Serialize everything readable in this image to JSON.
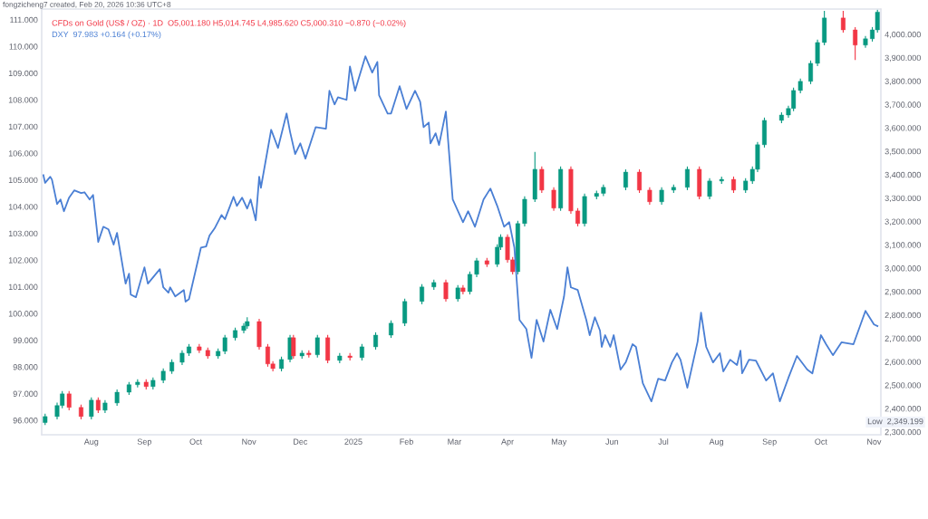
{
  "chart_data": {
    "type": "candlestick",
    "annotations": [
      "fongzicheng7 created, Feb 20, 2026 10:36 UTC+8",
      "CFDs on Gold (US$ / OZ) · 1D  O5,001.180 H5,014.745 L4,985.620 C5,000.310 −0.870 (−0.02%)",
      "DXY  97.983 +0.164 (+0.17%)",
      "Low  2,349.199"
    ],
    "xlim": [
      "2024-07-03",
      "2025-11-05"
    ],
    "xticks": [
      {
        "value": "2024-08-01",
        "label": "Aug"
      },
      {
        "value": "2024-09-01",
        "label": "Sep"
      },
      {
        "value": "2024-10-01",
        "label": "Oct"
      },
      {
        "value": "2024-11-01",
        "label": "Nov"
      },
      {
        "value": "2024-12-01",
        "label": "Dec"
      },
      {
        "value": "2025-01-01",
        "label": "2025"
      },
      {
        "value": "2025-02-01",
        "label": "Feb"
      },
      {
        "value": "2025-03-01",
        "label": "Mar"
      },
      {
        "value": "2025-04-01",
        "label": "Apr"
      },
      {
        "value": "2025-05-01",
        "label": "May"
      },
      {
        "value": "2025-06-01",
        "label": "Jun"
      },
      {
        "value": "2025-07-01",
        "label": "Jul"
      },
      {
        "value": "2025-08-01",
        "label": "Aug"
      },
      {
        "value": "2025-09-01",
        "label": "Sep"
      },
      {
        "value": "2025-10-01",
        "label": "Oct"
      },
      {
        "value": "2025-11-01",
        "label": "Nov"
      }
    ],
    "ylim": [
      95.46,
      111.4
    ],
    "yticks": [
      {
        "value": 96,
        "label": "96.000"
      },
      {
        "value": 97,
        "label": "97.000"
      },
      {
        "value": 98,
        "label": "98.000"
      },
      {
        "value": 99,
        "label": "99.000"
      },
      {
        "value": 100,
        "label": "100.000"
      },
      {
        "value": 101,
        "label": "101.000"
      },
      {
        "value": 102,
        "label": "102.000"
      },
      {
        "value": 103,
        "label": "103.000"
      },
      {
        "value": 104,
        "label": "104.000"
      },
      {
        "value": 105,
        "label": "105.000"
      },
      {
        "value": 106,
        "label": "106.000"
      },
      {
        "value": 107,
        "label": "107.000"
      },
      {
        "value": 108,
        "label": "108.000"
      },
      {
        "value": 109,
        "label": "109.000"
      },
      {
        "value": 110,
        "label": "110.000"
      },
      {
        "value": 111,
        "label": "111.000"
      }
    ],
    "y2lim": [
      2288,
      4108
    ],
    "y2ticks": [
      {
        "value": 2300,
        "label": "2,300.000"
      },
      {
        "value": 2400,
        "label": "2,400.000"
      },
      {
        "value": 2500,
        "label": "2,500.000"
      },
      {
        "value": 2600,
        "label": "2,600.000"
      },
      {
        "value": 2700,
        "label": "2,700.000"
      },
      {
        "value": 2800,
        "label": "2,800.000"
      },
      {
        "value": 2900,
        "label": "2,900.000"
      },
      {
        "value": 3000,
        "label": "3,000.000"
      },
      {
        "value": 3100,
        "label": "3,100.000"
      },
      {
        "value": 3200,
        "label": "3,200.000"
      },
      {
        "value": 3300,
        "label": "3,300.000"
      },
      {
        "value": 3400,
        "label": "3,400.000"
      },
      {
        "value": 3500,
        "label": "3,500.000"
      },
      {
        "value": 3600,
        "label": "3,600.000"
      },
      {
        "value": 3700,
        "label": "3,700.000"
      },
      {
        "value": 3800,
        "label": "3,800.000"
      },
      {
        "value": 3900,
        "label": "3,900.000"
      },
      {
        "value": 4000,
        "label": "4,000.000"
      }
    ],
    "grid": false,
    "legend": false,
    "series": [
      {
        "type": "line",
        "color": "#4a7fd4",
        "x": [
          "2024-07-04",
          "2024-07-05",
          "2024-07-08",
          "2024-07-09",
          "2024-07-12",
          "2024-07-14",
          "2024-07-16",
          "2024-07-19",
          "2024-07-22",
          "2024-07-26",
          "2024-07-28",
          "2024-07-31",
          "2024-08-02",
          "2024-08-05",
          "2024-08-08",
          "2024-08-11",
          "2024-08-14",
          "2024-08-16",
          "2024-08-21",
          "2024-08-23",
          "2024-08-24",
          "2024-08-27",
          "2024-09-01",
          "2024-09-03",
          "2024-09-10",
          "2024-09-12",
          "2024-09-15",
          "2024-09-16",
          "2024-09-19",
          "2024-09-24",
          "2024-09-25",
          "2024-09-27",
          "2024-10-04",
          "2024-10-07",
          "2024-10-09",
          "2024-10-12",
          "2024-10-16",
          "2024-10-18",
          "2024-10-21",
          "2024-10-23",
          "2024-10-25",
          "2024-10-28",
          "2024-10-31",
          "2024-11-02",
          "2024-11-05",
          "2024-11-07",
          "2024-11-08",
          "2024-11-14",
          "2024-11-18",
          "2024-11-23",
          "2024-11-25",
          "2024-11-28",
          "2024-12-01",
          "2024-12-04",
          "2024-12-10",
          "2024-12-16",
          "2024-12-18",
          "2024-12-21",
          "2024-12-23",
          "2024-12-28",
          "2024-12-30",
          "2025-01-02",
          "2025-01-04",
          "2025-01-08",
          "2025-01-12",
          "2025-01-15",
          "2025-01-16",
          "2025-01-21",
          "2025-01-23",
          "2025-01-28",
          "2025-02-01",
          "2025-02-06",
          "2025-02-09",
          "2025-02-11",
          "2025-02-14",
          "2025-02-15",
          "2025-02-18",
          "2025-02-20",
          "2025-02-24",
          "2025-02-28",
          "2025-03-06",
          "2025-03-09",
          "2025-03-13",
          "2025-03-18",
          "2025-03-22",
          "2025-03-26",
          "2025-03-30",
          "2025-04-02",
          "2025-04-05",
          "2025-04-08",
          "2025-04-12",
          "2025-04-15",
          "2025-04-18",
          "2025-04-22",
          "2025-04-26",
          "2025-04-30",
          "2025-05-04",
          "2025-05-06",
          "2025-05-08",
          "2025-05-12",
          "2025-05-17",
          "2025-05-19",
          "2025-05-22",
          "2025-05-25",
          "2025-05-26",
          "2025-05-28",
          "2025-05-31",
          "2025-06-02",
          "2025-06-06",
          "2025-06-09",
          "2025-06-13",
          "2025-06-15",
          "2025-06-19",
          "2025-06-24",
          "2025-06-28",
          "2025-07-02",
          "2025-07-06",
          "2025-07-09",
          "2025-07-11",
          "2025-07-15",
          "2025-07-21",
          "2025-07-23",
          "2025-07-26",
          "2025-07-30",
          "2025-08-03",
          "2025-08-05",
          "2025-08-09",
          "2025-08-13",
          "2025-08-15",
          "2025-08-16",
          "2025-08-20",
          "2025-08-24",
          "2025-08-30",
          "2025-09-03",
          "2025-09-07",
          "2025-09-12",
          "2025-09-17",
          "2025-09-23",
          "2025-09-26",
          "2025-10-01",
          "2025-10-04",
          "2025-10-08",
          "2025-10-13",
          "2025-10-20",
          "2025-10-27",
          "2025-11-01",
          "2025-11-03"
        ],
        "values": [
          105.18,
          104.89,
          105.12,
          105.01,
          104.1,
          104.27,
          103.83,
          104.34,
          104.61,
          104.51,
          104.54,
          104.27,
          104.44,
          102.68,
          103.25,
          103.15,
          102.58,
          103.02,
          101.12,
          101.49,
          100.71,
          100.61,
          101.73,
          101.12,
          101.66,
          100.98,
          100.78,
          100.98,
          100.64,
          100.88,
          100.44,
          100.54,
          102.47,
          102.51,
          102.92,
          103.19,
          103.69,
          103.53,
          104.03,
          104.37,
          104.03,
          104.34,
          103.93,
          104.27,
          103.49,
          105.12,
          104.71,
          106.88,
          106.2,
          107.49,
          106.81,
          105.97,
          106.37,
          105.8,
          106.98,
          106.92,
          108.34,
          107.83,
          108.1,
          108.0,
          109.25,
          108.34,
          108.78,
          109.63,
          109.02,
          109.42,
          108.17,
          107.49,
          107.49,
          108.51,
          107.66,
          108.34,
          107.93,
          106.98,
          107.15,
          106.37,
          106.75,
          106.31,
          107.56,
          104.27,
          103.42,
          103.83,
          103.25,
          104.27,
          104.68,
          104.03,
          103.25,
          103.42,
          102.47,
          99.76,
          99.42,
          98.34,
          99.76,
          98.95,
          100.14,
          99.42,
          100.64,
          101.73,
          100.98,
          100.88,
          99.76,
          99.19,
          99.86,
          99.36,
          98.75,
          99.19,
          98.75,
          99.19,
          97.9,
          98.17,
          98.85,
          98.75,
          97.39,
          96.71,
          97.56,
          97.49,
          98.17,
          98.51,
          98.27,
          97.22,
          98.95,
          100.03,
          98.75,
          98.17,
          98.51,
          97.83,
          98.27,
          98.07,
          98.61,
          97.76,
          98.27,
          98.24,
          97.49,
          97.76,
          96.71,
          97.59,
          98.41,
          97.9,
          97.76,
          99.19,
          98.85,
          98.44,
          98.92,
          98.85,
          100.1,
          99.59,
          99.53
        ]
      },
      {
        "type": "candlestick",
        "axis": "y2",
        "x": [
          "2024-07-05",
          "2024-07-12",
          "2024-07-15",
          "2024-07-19",
          "2024-07-26",
          "2024-08-01",
          "2024-08-05",
          "2024-08-09",
          "2024-08-16",
          "2024-08-23",
          "2024-08-28",
          "2024-09-02",
          "2024-09-06",
          "2024-09-12",
          "2024-09-17",
          "2024-09-23",
          "2024-09-27",
          "2024-10-03",
          "2024-10-08",
          "2024-10-14",
          "2024-10-18",
          "2024-10-24",
          "2024-10-29",
          "2024-10-31",
          "2024-11-07",
          "2024-11-12",
          "2024-11-15",
          "2024-11-20",
          "2024-11-25",
          "2024-11-27",
          "2024-12-02",
          "2024-12-06",
          "2024-12-11",
          "2024-12-17",
          "2024-12-24",
          "2024-12-30",
          "2025-01-06",
          "2025-01-14",
          "2025-01-23",
          "2025-01-31",
          "2025-02-10",
          "2025-02-17",
          "2025-02-24",
          "2025-03-03",
          "2025-03-06",
          "2025-03-10",
          "2025-03-14",
          "2025-03-20",
          "2025-03-26",
          "2025-03-28",
          "2025-04-01",
          "2025-04-04",
          "2025-04-07",
          "2025-04-11",
          "2025-04-17",
          "2025-04-21",
          "2025-04-28",
          "2025-05-02",
          "2025-05-08",
          "2025-05-12",
          "2025-05-16",
          "2025-05-23",
          "2025-05-27",
          "2025-06-09",
          "2025-06-17",
          "2025-06-23",
          "2025-06-30",
          "2025-07-07",
          "2025-07-15",
          "2025-07-22",
          "2025-07-28",
          "2025-08-04",
          "2025-08-11",
          "2025-08-18",
          "2025-08-22",
          "2025-08-25",
          "2025-08-29",
          "2025-09-08",
          "2025-09-12",
          "2025-09-15",
          "2025-09-19",
          "2025-09-25",
          "2025-09-29",
          "2025-10-03",
          "2025-10-14",
          "2025-10-21",
          "2025-10-27",
          "2025-10-31",
          "2025-11-03"
        ],
        "ohlc": [
          [
            2340,
            2378,
            2330,
            2366
          ],
          [
            2366,
            2425,
            2354,
            2413
          ],
          [
            2413,
            2475,
            2401,
            2463
          ],
          [
            2463,
            2475,
            2393,
            2405
          ],
          [
            2405,
            2417,
            2354,
            2366
          ],
          [
            2366,
            2448,
            2354,
            2436
          ],
          [
            2436,
            2448,
            2381,
            2393
          ],
          [
            2393,
            2436,
            2381,
            2424
          ],
          [
            2424,
            2482,
            2412,
            2470
          ],
          [
            2470,
            2514,
            2458,
            2502
          ],
          [
            2502,
            2525,
            2490,
            2513
          ],
          [
            2513,
            2525,
            2482,
            2494
          ],
          [
            2494,
            2533,
            2482,
            2521
          ],
          [
            2521,
            2572,
            2509,
            2560
          ],
          [
            2560,
            2610,
            2548,
            2598
          ],
          [
            2598,
            2649,
            2586,
            2637
          ],
          [
            2637,
            2676,
            2625,
            2664
          ],
          [
            2664,
            2676,
            2637,
            2649
          ],
          [
            2649,
            2661,
            2613,
            2625
          ],
          [
            2625,
            2657,
            2613,
            2645
          ],
          [
            2645,
            2715,
            2633,
            2703
          ],
          [
            2703,
            2746,
            2691,
            2734
          ],
          [
            2734,
            2765,
            2722,
            2753
          ],
          [
            2753,
            2790,
            2741,
            2772
          ],
          [
            2772,
            2784,
            2652,
            2664
          ],
          [
            2664,
            2676,
            2579,
            2591
          ],
          [
            2591,
            2603,
            2559,
            2571
          ],
          [
            2571,
            2622,
            2559,
            2610
          ],
          [
            2610,
            2715,
            2598,
            2703
          ],
          [
            2703,
            2715,
            2613,
            2625
          ],
          [
            2625,
            2649,
            2613,
            2637
          ],
          [
            2637,
            2649,
            2618,
            2630
          ],
          [
            2630,
            2715,
            2618,
            2703
          ],
          [
            2703,
            2715,
            2594,
            2606
          ],
          [
            2606,
            2637,
            2594,
            2625
          ],
          [
            2625,
            2637,
            2606,
            2618
          ],
          [
            2618,
            2676,
            2606,
            2664
          ],
          [
            2664,
            2726,
            2652,
            2714
          ],
          [
            2714,
            2777,
            2702,
            2765
          ],
          [
            2765,
            2870,
            2753,
            2858
          ],
          [
            2858,
            2932,
            2846,
            2920
          ],
          [
            2920,
            2951,
            2908,
            2939
          ],
          [
            2939,
            2951,
            2857,
            2869
          ],
          [
            2869,
            2928,
            2857,
            2916
          ],
          [
            2916,
            2928,
            2888,
            2900
          ],
          [
            2900,
            2986,
            2888,
            2974
          ],
          [
            2974,
            3044,
            2962,
            3032
          ],
          [
            3032,
            3044,
            3005,
            3017
          ],
          [
            3017,
            3102,
            3005,
            3090
          ],
          [
            3090,
            3145,
            3078,
            3133
          ],
          [
            3133,
            3145,
            3024,
            3036
          ],
          [
            3036,
            3048,
            2973,
            2985
          ],
          [
            2985,
            3203,
            2973,
            3191
          ],
          [
            3191,
            3307,
            3179,
            3295
          ],
          [
            3295,
            3497,
            3283,
            3423
          ],
          [
            3423,
            3435,
            3322,
            3334
          ],
          [
            3334,
            3346,
            3245,
            3257
          ],
          [
            3257,
            3435,
            3245,
            3423
          ],
          [
            3423,
            3435,
            3233,
            3245
          ],
          [
            3245,
            3257,
            3179,
            3191
          ],
          [
            3191,
            3319,
            3179,
            3307
          ],
          [
            3307,
            3332,
            3295,
            3320
          ],
          [
            3320,
            3358,
            3308,
            3346
          ],
          [
            3346,
            3423,
            3334,
            3411
          ],
          [
            3411,
            3423,
            3322,
            3334
          ],
          [
            3334,
            3346,
            3272,
            3284
          ],
          [
            3284,
            3346,
            3272,
            3334
          ],
          [
            3334,
            3358,
            3322,
            3346
          ],
          [
            3346,
            3435,
            3334,
            3423
          ],
          [
            3423,
            3435,
            3295,
            3307
          ],
          [
            3307,
            3385,
            3295,
            3373
          ],
          [
            3373,
            3392,
            3361,
            3380
          ],
          [
            3380,
            3392,
            3322,
            3334
          ],
          [
            3334,
            3385,
            3322,
            3373
          ],
          [
            3373,
            3435,
            3361,
            3423
          ],
          [
            3423,
            3540,
            3411,
            3528
          ],
          [
            3528,
            3644,
            3516,
            3632
          ],
          [
            3632,
            3667,
            3620,
            3655
          ],
          [
            3655,
            3695,
            3643,
            3683
          ],
          [
            3683,
            3772,
            3671,
            3760
          ],
          [
            3760,
            3811,
            3748,
            3799
          ],
          [
            3799,
            3888,
            3787,
            3876
          ],
          [
            3876,
            3977,
            3864,
            3965
          ],
          [
            3965,
            4100,
            3953,
            4070
          ],
          [
            4070,
            4100,
            4007,
            4019
          ],
          [
            4019,
            4031,
            3890,
            3954
          ],
          [
            3954,
            3993,
            3942,
            3981
          ],
          [
            3981,
            4031,
            3969,
            4019
          ],
          [
            4019,
            4105,
            4007,
            4095
          ]
        ],
        "colors": [
          "#089981",
          "#089981",
          "#089981",
          "#f23645",
          "#f23645",
          "#089981",
          "#f23645",
          "#089981",
          "#089981",
          "#089981",
          "#089981",
          "#f23645",
          "#089981",
          "#089981",
          "#089981",
          "#089981",
          "#089981",
          "#f23645",
          "#f23645",
          "#089981",
          "#089981",
          "#089981",
          "#089981",
          "#089981",
          "#f23645",
          "#f23645",
          "#f23645",
          "#089981",
          "#089981",
          "#f23645",
          "#089981",
          "#f23645",
          "#089981",
          "#f23645",
          "#089981",
          "#f23645",
          "#089981",
          "#089981",
          "#089981",
          "#089981",
          "#089981",
          "#089981",
          "#f23645",
          "#089981",
          "#f23645",
          "#089981",
          "#089981",
          "#f23645",
          "#089981",
          "#089981",
          "#f23645",
          "#f23645",
          "#089981",
          "#089981",
          "#089981",
          "#f23645",
          "#f23645",
          "#089981",
          "#f23645",
          "#f23645",
          "#089981",
          "#089981",
          "#089981",
          "#089981",
          "#f23645",
          "#f23645",
          "#089981",
          "#089981",
          "#089981",
          "#f23645",
          "#089981",
          "#089981",
          "#f23645",
          "#089981",
          "#089981",
          "#089981",
          "#089981",
          "#089981",
          "#089981",
          "#089981",
          "#089981",
          "#089981",
          "#089981",
          "#089981",
          "#f23645",
          "#f23645",
          "#089981",
          "#089981",
          "#089981"
        ]
      }
    ]
  }
}
